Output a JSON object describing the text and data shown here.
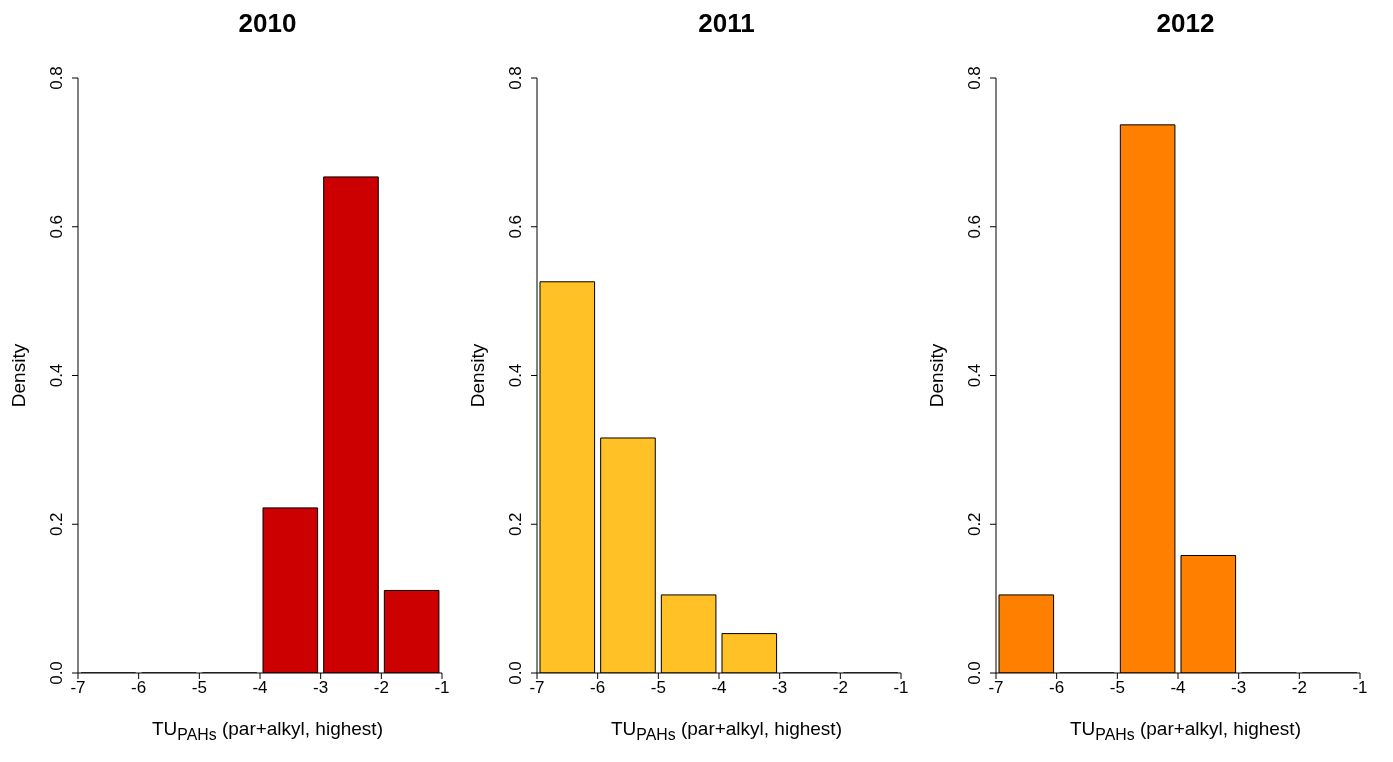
{
  "chart_data": [
    {
      "type": "histogram",
      "title": "2010",
      "xlabel": "TU$_{PAHs}$ (par+alkyl, highest)",
      "ylabel": "Density",
      "bins": [
        -7,
        -6,
        -5,
        -4,
        -3,
        -2,
        -1
      ],
      "values": [
        0,
        0,
        0,
        0.222,
        0.667,
        0.111
      ],
      "color": "#cc0000",
      "xlim": [
        -7,
        -1
      ],
      "xticks": [
        -7,
        -6,
        -5,
        -4,
        -3,
        -2,
        -1
      ],
      "ylim": [
        0,
        0.8
      ],
      "yticks": [
        {
          "value": 0,
          "label": "0.0"
        },
        {
          "value": 0.2,
          "label": "0.2"
        },
        {
          "value": 0.4,
          "label": "0.4"
        },
        {
          "value": 0.6,
          "label": "0.6"
        },
        {
          "value": 0.8,
          "label": "0.8"
        }
      ]
    },
    {
      "type": "histogram",
      "title": "2011",
      "xlabel": "TU$_{PAHs}$ (par+alkyl, highest)",
      "ylabel": "Density",
      "bins": [
        -7,
        -6,
        -5,
        -4,
        -3,
        -2,
        -1
      ],
      "values": [
        0.526,
        0.316,
        0.105,
        0.053,
        0,
        0
      ],
      "color": "#ffc125",
      "xlim": [
        -7,
        -1
      ],
      "xticks": [
        -7,
        -6,
        -5,
        -4,
        -3,
        -2,
        -1
      ],
      "ylim": [
        0,
        0.8
      ],
      "yticks": [
        {
          "value": 0,
          "label": "0.0"
        },
        {
          "value": 0.2,
          "label": "0.2"
        },
        {
          "value": 0.4,
          "label": "0.4"
        },
        {
          "value": 0.6,
          "label": "0.6"
        },
        {
          "value": 0.8,
          "label": "0.8"
        }
      ]
    },
    {
      "type": "histogram",
      "title": "2012",
      "xlabel": "TU$_{PAHs}$ (par+alkyl, highest)",
      "ylabel": "Density",
      "bins": [
        -7,
        -6,
        -5,
        -4,
        -3,
        -2,
        -1
      ],
      "values": [
        0.105,
        0,
        0.737,
        0.158,
        0,
        0
      ],
      "color": "#ff7f00",
      "xlim": [
        -7,
        -1
      ],
      "xticks": [
        -7,
        -6,
        -5,
        -4,
        -3,
        -2,
        -1
      ],
      "ylim": [
        0,
        0.8
      ],
      "yticks": [
        {
          "value": 0,
          "label": "0.0"
        },
        {
          "value": 0.2,
          "label": "0.2"
        },
        {
          "value": 0.4,
          "label": "0.4"
        },
        {
          "value": 0.6,
          "label": "0.6"
        },
        {
          "value": 0.8,
          "label": "0.8"
        }
      ]
    }
  ]
}
